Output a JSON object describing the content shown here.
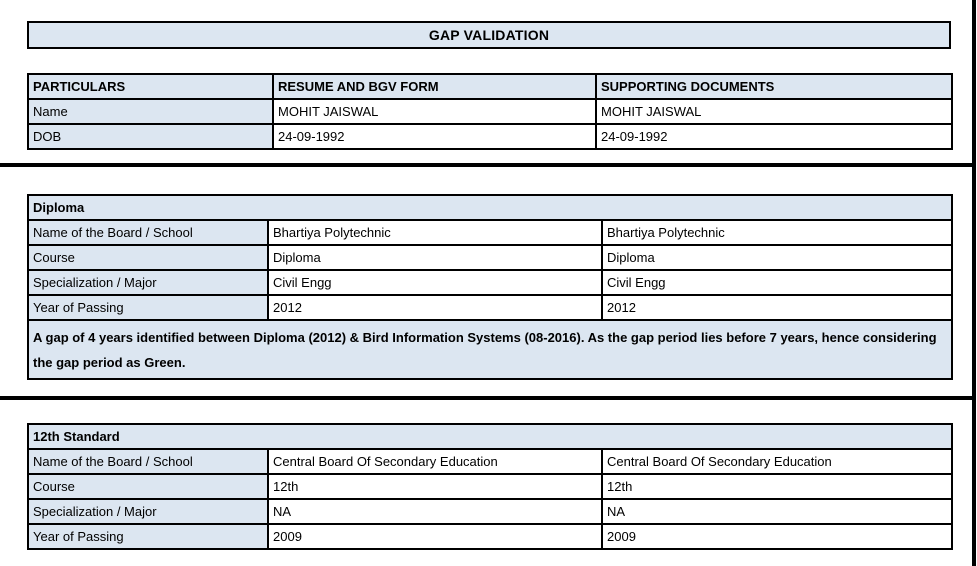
{
  "page": {
    "title": "GAP VALIDATION"
  },
  "colors": {
    "header_fill": "#dce6f1",
    "border": "#000000",
    "background": "#ffffff"
  },
  "summary_table": {
    "headers": [
      "PARTICULARS",
      "RESUME AND BGV FORM",
      "SUPPORTING DOCUMENTS"
    ],
    "rows": [
      {
        "label": "Name",
        "resume": "MOHIT JAISWAL",
        "supporting": "MOHIT JAISWAL"
      },
      {
        "label": "DOB",
        "resume": "24-09-1992",
        "supporting": "24-09-1992"
      }
    ]
  },
  "sections": [
    {
      "title": "Diploma",
      "rows": [
        {
          "label": "Name of the Board / School",
          "resume": "Bhartiya Polytechnic",
          "supporting": "Bhartiya Polytechnic"
        },
        {
          "label": "Course",
          "resume": "Diploma",
          "supporting": "Diploma"
        },
        {
          "label": "Specialization / Major",
          "resume": "Civil Engg",
          "supporting": "Civil Engg"
        },
        {
          "label": "Year of Passing",
          "resume": "2012",
          "supporting": "2012"
        }
      ],
      "note": "A gap of 4 years identified between Diploma (2012) & Bird Information Systems (08-2016). As the gap period lies before 7 years, hence considering the gap period as Green."
    },
    {
      "title": "12th Standard",
      "rows": [
        {
          "label": "Name of the Board / School",
          "resume": "Central Board Of Secondary Education",
          "supporting": "Central Board Of Secondary Education"
        },
        {
          "label": "Course",
          "resume": "12th",
          "supporting": "12th"
        },
        {
          "label": "Specialization / Major",
          "resume": "NA",
          "supporting": "NA"
        },
        {
          "label": "Year of Passing",
          "resume": "2009",
          "supporting": "2009"
        }
      ]
    }
  ]
}
